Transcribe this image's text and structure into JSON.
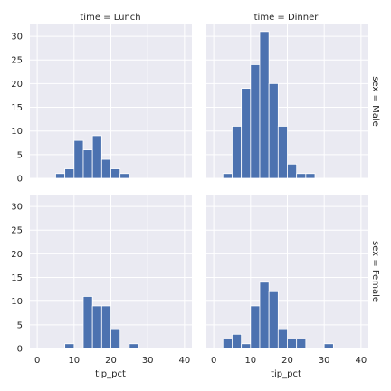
{
  "chart_data": {
    "type": "bar",
    "x_variable": "tip_pct",
    "bin_width": 2.5,
    "x_ticks": [
      0,
      10,
      20,
      30,
      40
    ],
    "y_ticks": [
      0,
      5,
      10,
      15,
      20,
      25,
      30
    ],
    "xlim": [
      -2,
      42
    ],
    "ylim": [
      0,
      32.5
    ],
    "grid": true,
    "color": "#4c72b0",
    "background": "#eaeaf2",
    "panels": [
      {
        "col_title": "time = Lunch",
        "row_title": "sex = Male",
        "bins": [
          {
            "x0": 5,
            "x1": 7.5,
            "count": 1
          },
          {
            "x0": 7.5,
            "x1": 10,
            "count": 2
          },
          {
            "x0": 10,
            "x1": 12.5,
            "count": 8
          },
          {
            "x0": 12.5,
            "x1": 15,
            "count": 6
          },
          {
            "x0": 15,
            "x1": 17.5,
            "count": 9
          },
          {
            "x0": 17.5,
            "x1": 20,
            "count": 4
          },
          {
            "x0": 20,
            "x1": 22.5,
            "count": 2
          },
          {
            "x0": 22.5,
            "x1": 25,
            "count": 1
          }
        ]
      },
      {
        "col_title": "time = Dinner",
        "row_title": "sex = Male",
        "bins": [
          {
            "x0": 2.5,
            "x1": 5,
            "count": 1
          },
          {
            "x0": 5,
            "x1": 7.5,
            "count": 11
          },
          {
            "x0": 7.5,
            "x1": 10,
            "count": 19
          },
          {
            "x0": 10,
            "x1": 12.5,
            "count": 24
          },
          {
            "x0": 12.5,
            "x1": 15,
            "count": 31
          },
          {
            "x0": 15,
            "x1": 17.5,
            "count": 20
          },
          {
            "x0": 17.5,
            "x1": 20,
            "count": 11
          },
          {
            "x0": 20,
            "x1": 22.5,
            "count": 3
          },
          {
            "x0": 22.5,
            "x1": 25,
            "count": 1
          },
          {
            "x0": 25,
            "x1": 27.5,
            "count": 1
          }
        ]
      },
      {
        "col_title": "time = Lunch",
        "row_title": "sex = Female",
        "bins": [
          {
            "x0": 7.5,
            "x1": 10,
            "count": 1
          },
          {
            "x0": 12.5,
            "x1": 15,
            "count": 11
          },
          {
            "x0": 15,
            "x1": 17.5,
            "count": 9
          },
          {
            "x0": 17.5,
            "x1": 20,
            "count": 9
          },
          {
            "x0": 20,
            "x1": 22.5,
            "count": 4
          },
          {
            "x0": 25,
            "x1": 27.5,
            "count": 1
          }
        ]
      },
      {
        "col_title": "time = Dinner",
        "row_title": "sex = Female",
        "bins": [
          {
            "x0": 2.5,
            "x1": 5,
            "count": 2
          },
          {
            "x0": 5,
            "x1": 7.5,
            "count": 3
          },
          {
            "x0": 7.5,
            "x1": 10,
            "count": 1
          },
          {
            "x0": 10,
            "x1": 12.5,
            "count": 9
          },
          {
            "x0": 12.5,
            "x1": 15,
            "count": 14
          },
          {
            "x0": 15,
            "x1": 17.5,
            "count": 12
          },
          {
            "x0": 17.5,
            "x1": 20,
            "count": 4
          },
          {
            "x0": 20,
            "x1": 22.5,
            "count": 2
          },
          {
            "x0": 22.5,
            "x1": 25,
            "count": 2
          },
          {
            "x0": 30,
            "x1": 32.5,
            "count": 1
          }
        ]
      }
    ]
  },
  "labels": {
    "col_lunch": "time = Lunch",
    "col_dinner": "time = Dinner",
    "row_male": "sex = Male",
    "row_female": "sex = Female",
    "xlabel": "tip_pct"
  }
}
